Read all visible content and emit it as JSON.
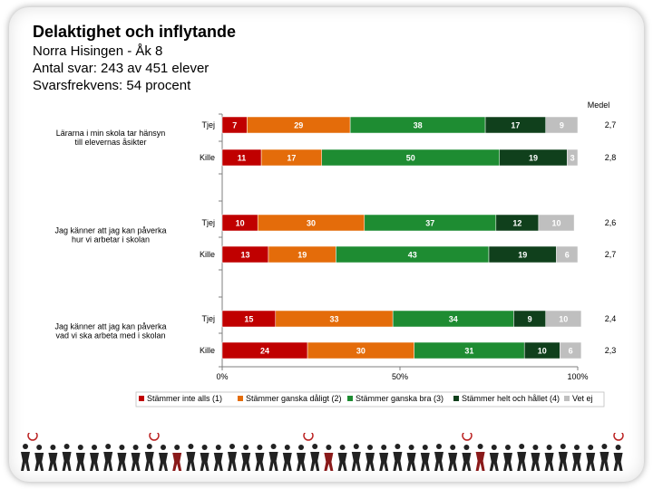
{
  "header": {
    "title": "Delaktighet och inflytande",
    "subtitle_lines": [
      "Norra Hisingen - Åk 8",
      "Antal svar: 243 av 451 elever",
      "Svarsfrekvens: 54 procent"
    ]
  },
  "chart_data": {
    "type": "bar",
    "stacked": "100%",
    "orientation": "horizontal",
    "medel_header": "Medel",
    "x_ticks": [
      "0%",
      "50%",
      "100%"
    ],
    "xlim": [
      0,
      100
    ],
    "colors": [
      "#c00000",
      "#e46c0a",
      "#1e8c32",
      "#10401c",
      "#bfbfbf"
    ],
    "label_colors": [
      "#ffffff",
      "#ffffff",
      "#ffffff",
      "#ffffff",
      "#ffffff"
    ],
    "legend": [
      "Stämmer inte alls (1)",
      "Stämmer ganska dåligt (2)",
      "Stämmer ganska bra (3)",
      "Stämmer helt och hållet (4)",
      "Vet ej"
    ],
    "groups": [
      {
        "question": [
          "Lärarna i min skola tar hänsyn",
          "till elevernas åsikter"
        ],
        "rows": [
          {
            "label": "Tjej",
            "values": [
              7,
              29,
              38,
              17,
              9
            ],
            "mean": "2,7"
          },
          {
            "label": "Kille",
            "values": [
              11,
              17,
              50,
              19,
              3
            ],
            "mean": "2,8"
          }
        ]
      },
      {
        "question": [
          "Jag känner att jag kan påverka",
          "hur vi arbetar i skolan"
        ],
        "rows": [
          {
            "label": "Tjej",
            "values": [
              10,
              30,
              37,
              12,
              10
            ],
            "mean": "2,6"
          },
          {
            "label": "Kille",
            "values": [
              13,
              19,
              43,
              19,
              6
            ],
            "mean": "2,7"
          }
        ]
      },
      {
        "question": [
          "Jag känner att jag kan påverka",
          "vad vi ska arbeta med i skolan"
        ],
        "rows": [
          {
            "label": "Tjej",
            "values": [
              15,
              33,
              34,
              9,
              10
            ],
            "mean": "2,4"
          },
          {
            "label": "Kille",
            "values": [
              24,
              30,
              31,
              10,
              6
            ],
            "mean": "2,3"
          }
        ]
      }
    ]
  }
}
